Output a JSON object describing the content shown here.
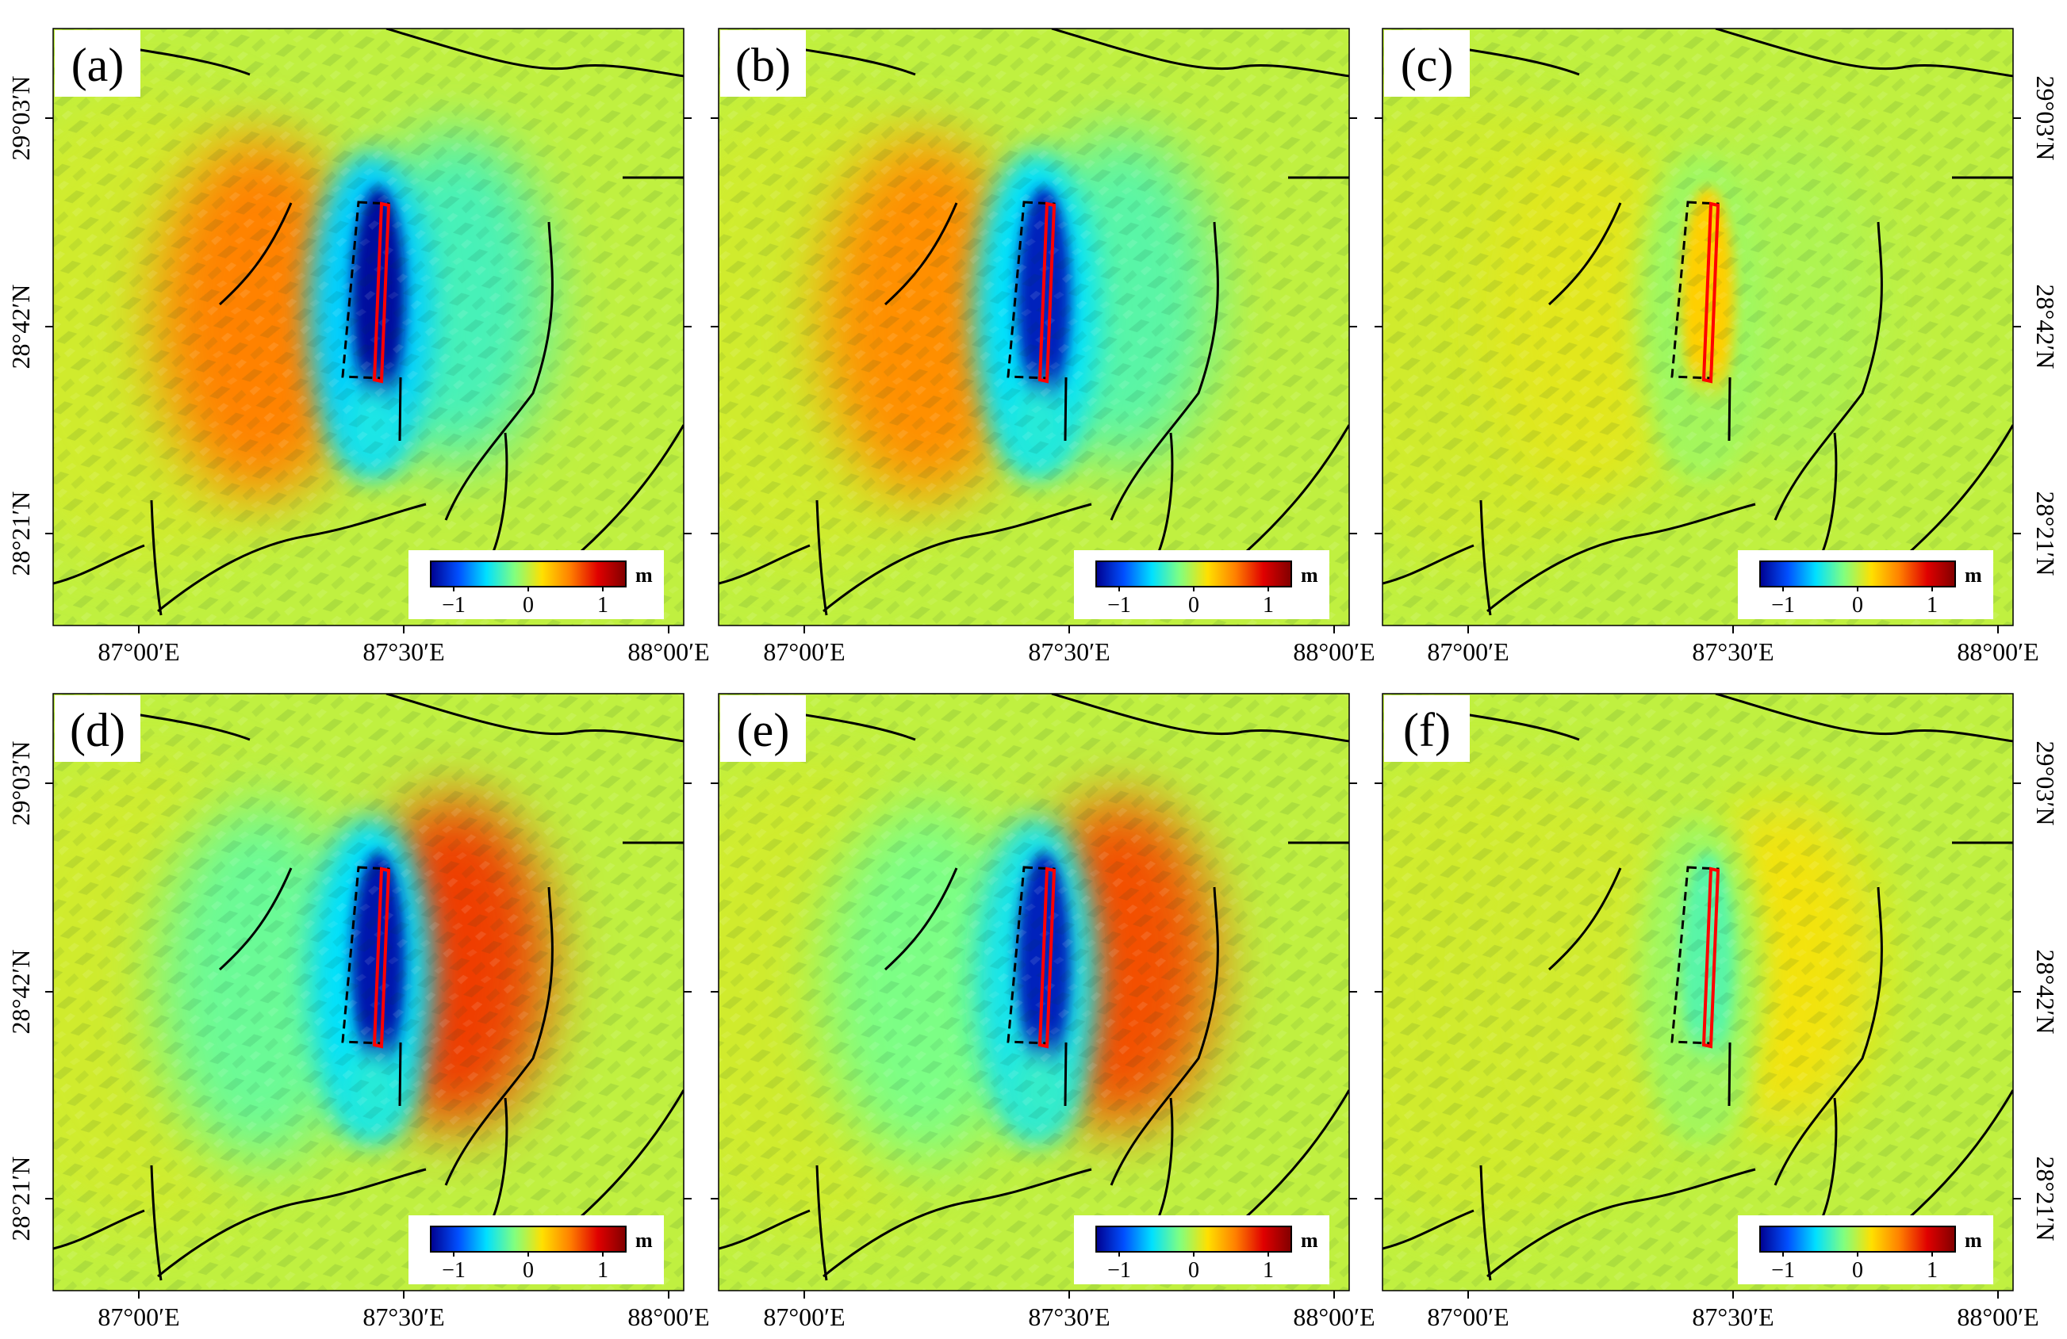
{
  "figure": {
    "x_tick_labels": [
      "87°00′E",
      "87°30′E",
      "88°00′E"
    ],
    "y_tick_labels": [
      "29°03′N",
      "28°42′N",
      "28°21′N"
    ],
    "colorbar": {
      "unit": "m",
      "tick_labels": [
        "−1",
        "0",
        "1"
      ],
      "colors": [
        "#00008f",
        "#0050ff",
        "#00e0ff",
        "#80ff80",
        "#ffe000",
        "#ff8000",
        "#e00000",
        "#800000"
      ]
    },
    "colors": {
      "background": "#4de69a",
      "rupture_trace": "#ff0000",
      "fault_lines": "#000000",
      "fault_plane_outline": "#000000"
    },
    "panels": [
      {
        "id": "a",
        "label": "(a)",
        "west_lobe": 0.55,
        "core": -1.25,
        "core_shadow": -0.6,
        "east_lobe": -0.35
      },
      {
        "id": "b",
        "label": "(b)",
        "west_lobe": 0.5,
        "core": -1.15,
        "core_shadow": -0.55,
        "east_lobe": -0.3
      },
      {
        "id": "c",
        "label": "(c)",
        "west_lobe": 0.1,
        "core": 0.25,
        "core_shadow": -0.1,
        "east_lobe": -0.05
      },
      {
        "id": "d",
        "label": "(d)",
        "west_lobe": -0.25,
        "core": -1.2,
        "core_shadow": -0.55,
        "east_lobe": 0.75
      },
      {
        "id": "e",
        "label": "(e)",
        "west_lobe": -0.2,
        "core": -1.15,
        "core_shadow": -0.5,
        "east_lobe": 0.7
      },
      {
        "id": "f",
        "label": "(f)",
        "west_lobe": 0.05,
        "core": -0.3,
        "core_shadow": -0.1,
        "east_lobe": 0.15
      }
    ]
  }
}
